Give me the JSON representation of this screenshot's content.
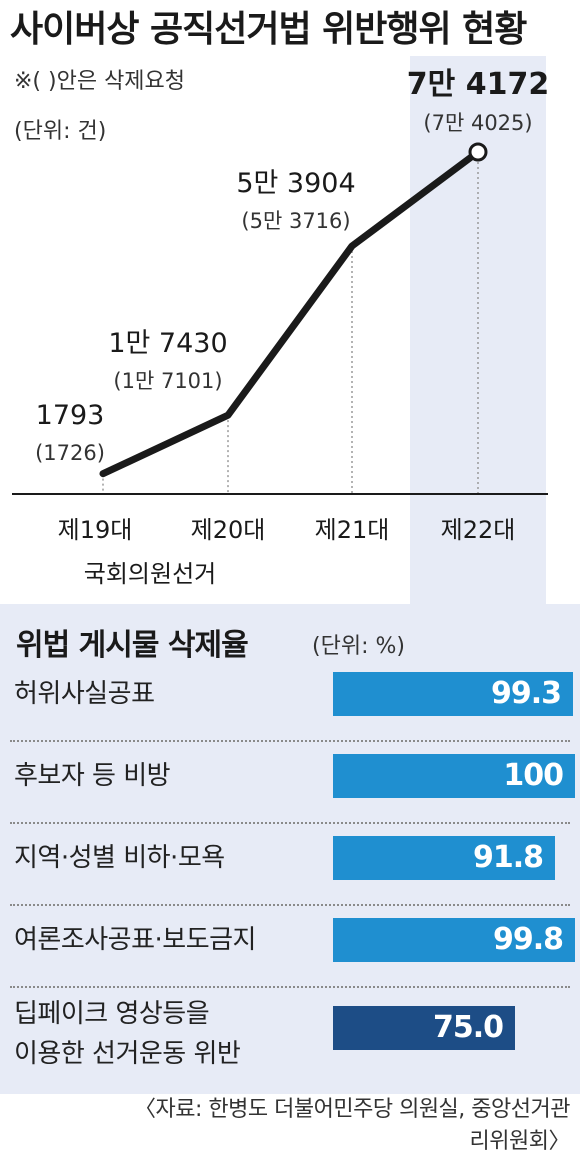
{
  "title": "사이버상 공직선거법 위반행위 현황",
  "note": "※(    )안은 삭제요청",
  "unit": "(단위: 건)",
  "chart_data": [
    {
      "type": "line",
      "title": "사이버상 공직선거법 위반행위 현황",
      "categories": [
        "제19대",
        "제20대",
        "제21대",
        "제22대"
      ],
      "xlabel": "국회의원선거",
      "series": [
        {
          "values": [
            1793,
            17430,
            53904,
            74172
          ],
          "labels": [
            "1793",
            "1만 7430",
            "5만 3904",
            "7만 4172"
          ]
        },
        {
          "values": [
            1726,
            17101,
            53716,
            74025
          ],
          "labels": [
            "(1726)",
            "(1만 7101)",
            "(5만 3716)",
            "(7만 4025)"
          ]
        }
      ],
      "highlight_category": "제22대",
      "colors": {
        "line": "#1a1a1a",
        "highlight_band": "#e7ebf6"
      }
    },
    {
      "type": "bar",
      "title": "위법 게시물 삭제율",
      "unit": "(단위: %)",
      "categories": [
        "허위사실공표",
        "후보자 등 비방",
        "지역·성별 비하·모욕",
        "여론조사공표·보도금지",
        "딥페이크 영상등을 이용한 선거운동 위반"
      ],
      "category_lines": [
        [
          "허위사실공표"
        ],
        [
          "후보자 등 비방"
        ],
        [
          "지역·성별 비하·모욕"
        ],
        [
          "여론조사공표·보도금지"
        ],
        [
          "딥페이크 영상등을",
          "이용한 선거운동 위반"
        ]
      ],
      "values": [
        99.3,
        100,
        91.8,
        99.8,
        75.0
      ],
      "value_labels": [
        "99.3",
        "100",
        "91.8",
        "99.8",
        "75.0"
      ],
      "colors": {
        "bar": "#1f8fd0",
        "last_bar": "#1d4d86"
      }
    }
  ],
  "source": "〈자료: 한병도 더불어민주당 의원실, 중앙선거관리위원회〉"
}
